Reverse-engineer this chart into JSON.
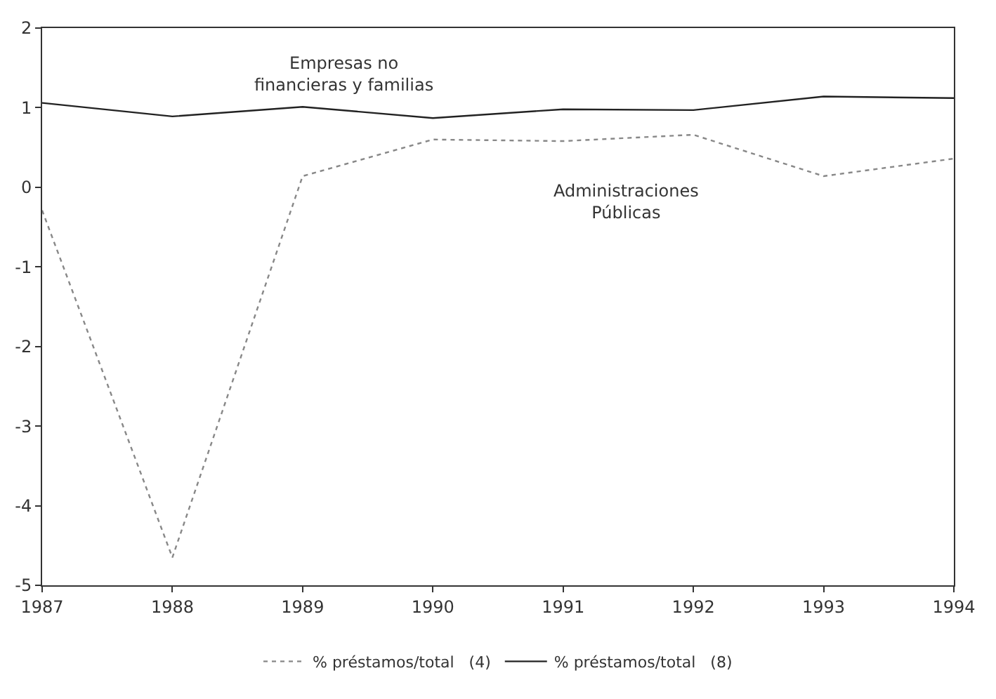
{
  "chart_data": {
    "type": "line",
    "x": [
      1987,
      1988,
      1989,
      1990,
      1991,
      1992,
      1993,
      1994
    ],
    "series": [
      {
        "name": "% préstamos/total   (4)",
        "color": "#888888",
        "line_style": "dotted",
        "values": [
          -0.29,
          -4.65,
          0.14,
          0.6,
          0.58,
          0.66,
          0.14,
          0.36
        ]
      },
      {
        "name": "% préstamos/total   (8)",
        "color": "#222222",
        "line_style": "solid",
        "values": [
          1.06,
          0.89,
          1.01,
          0.87,
          0.98,
          0.97,
          1.14,
          1.12
        ]
      }
    ],
    "xlim": [
      1987,
      1994
    ],
    "xticks": [
      1987,
      1988,
      1989,
      1990,
      1991,
      1992,
      1993,
      1994
    ],
    "ylim": [
      -5,
      2
    ],
    "yticks": [
      -5,
      -4,
      -3,
      -2,
      -1,
      0,
      1,
      2
    ],
    "legend": "bottom",
    "marker": "none",
    "annotations": [
      "Empresas no\nfinancieras y familias",
      "Administraciones\nPúblicas"
    ]
  }
}
